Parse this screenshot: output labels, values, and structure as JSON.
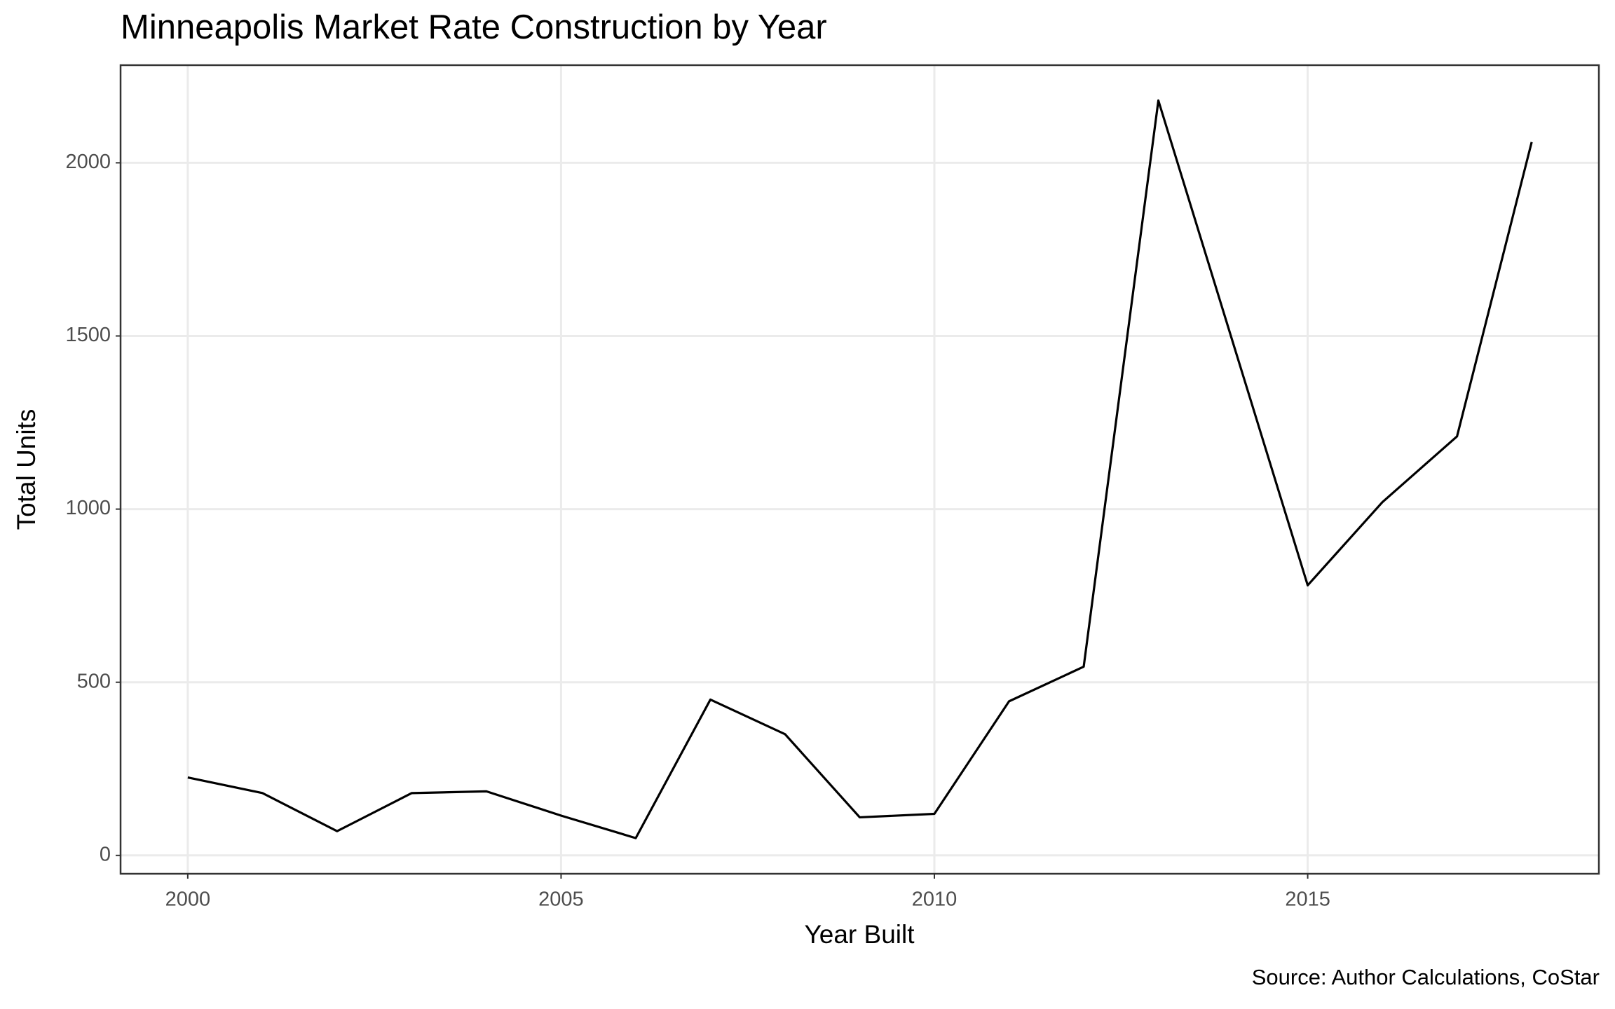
{
  "chart_data": {
    "type": "line",
    "title": "Minneapolis Market Rate Construction by Year",
    "x_label": "Year Built",
    "y_label": "Total Units",
    "caption": "Source: Author Calculations, CoStar",
    "x": [
      2000,
      2001,
      2002,
      2003,
      2004,
      2005,
      2006,
      2007,
      2008,
      2009,
      2010,
      2011,
      2012,
      2013,
      2014,
      2015,
      2016,
      2017,
      2018
    ],
    "series": [
      {
        "name": "Total Units",
        "color": "#000000",
        "values": [
          225,
          180,
          70,
          180,
          185,
          115,
          50,
          450,
          350,
          110,
          120,
          445,
          545,
          2180,
          1480,
          780,
          1020,
          1210,
          2060
        ]
      }
    ],
    "xlim": [
      1999.1,
      2018.9
    ],
    "xticks": [
      2000,
      2005,
      2010,
      2015
    ],
    "ylim": [
      -53,
      2282
    ],
    "yticks": [
      0,
      500,
      1000,
      1500,
      2000
    ],
    "grid": true
  }
}
